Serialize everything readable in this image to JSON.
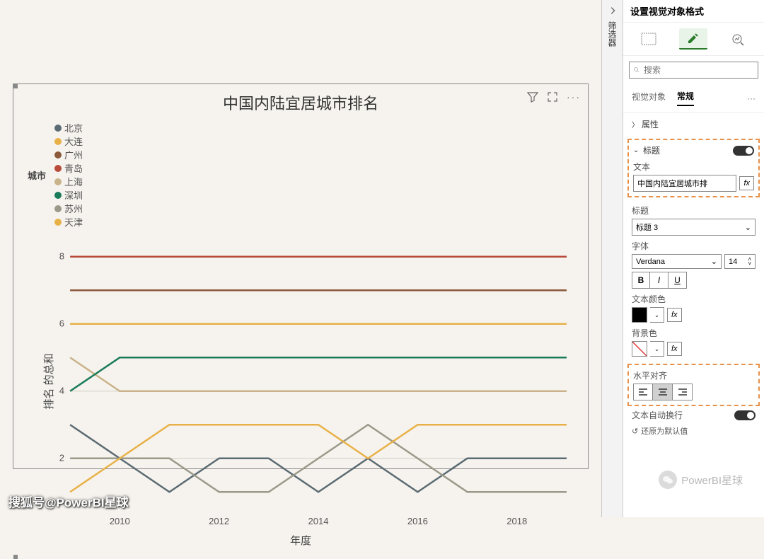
{
  "panel": {
    "title": "设置视觉对象格式",
    "collapsed_label": "筛选器",
    "search_placeholder": "搜索",
    "tabs": {
      "visual": "视觉对象",
      "general": "常规",
      "active": "general"
    },
    "sections": {
      "properties": {
        "label": "属性",
        "expanded": false
      },
      "title": {
        "label": "标题",
        "expanded": true,
        "enabled": true,
        "fields": {
          "text_label": "文本",
          "text_value": "中国内陆宜居城市排",
          "heading_label": "标题",
          "heading_value": "标题 3",
          "font_label": "字体",
          "font_family": "Verdana",
          "font_size": "14",
          "bold": "B",
          "italic": "I",
          "underline": "U",
          "text_color_label": "文本颜色",
          "text_color": "#000000",
          "bg_color_label": "背景色",
          "bg_color": "transparent",
          "align_label": "水平对齐",
          "align": "center",
          "wrap_label": "文本自动换行"
        }
      }
    },
    "reset": "还原为默认值"
  },
  "chart": {
    "title": "中国内陆宜居城市排名",
    "legend_label": "城市",
    "x_axis_label": "年度",
    "y_axis_label": "排名 的总和",
    "background_color": "#f6f3ee",
    "grid_color": "#d0ccc4",
    "x_ticks": [
      "2010",
      "2012",
      "2014",
      "2016",
      "2018"
    ],
    "x_tick_indices": [
      1,
      3,
      5,
      7,
      9
    ],
    "y_ticks": [
      2,
      4,
      6,
      8
    ],
    "y_range": [
      0.5,
      8.5
    ],
    "x_count": 11,
    "series": [
      {
        "name": "北京",
        "color": "#5b6b73",
        "values": [
          3,
          2,
          1,
          2,
          2,
          1,
          2,
          1,
          2,
          2,
          2
        ]
      },
      {
        "name": "大连",
        "color": "#e8b148",
        "values": [
          6,
          6,
          6,
          6,
          6,
          6,
          6,
          6,
          6,
          6,
          6
        ]
      },
      {
        "name": "广州",
        "color": "#8a5a3a",
        "values": [
          7,
          7,
          7,
          7,
          7,
          7,
          7,
          7,
          7,
          7,
          7
        ]
      },
      {
        "name": "青岛",
        "color": "#b84a3a",
        "values": [
          8,
          8,
          8,
          8,
          8,
          8,
          8,
          8,
          8,
          8,
          8
        ]
      },
      {
        "name": "上海",
        "color": "#c9b38a",
        "values": [
          5,
          4,
          4,
          4,
          4,
          4,
          4,
          4,
          4,
          4,
          4
        ]
      },
      {
        "name": "深圳",
        "color": "#1a7a5a",
        "values": [
          4,
          5,
          5,
          5,
          5,
          5,
          5,
          5,
          5,
          5,
          5
        ]
      },
      {
        "name": "苏州",
        "color": "#9a9a8a",
        "values": [
          2,
          2,
          2,
          1,
          1,
          2,
          3,
          2,
          1,
          1,
          1
        ]
      },
      {
        "name": "天津",
        "color": "#e8b148",
        "values": [
          1,
          2,
          3,
          3,
          3,
          3,
          2,
          3,
          3,
          3,
          3
        ]
      }
    ]
  },
  "watermark": "搜狐号@PowerBI星球",
  "wechat": "PowerBI星球"
}
